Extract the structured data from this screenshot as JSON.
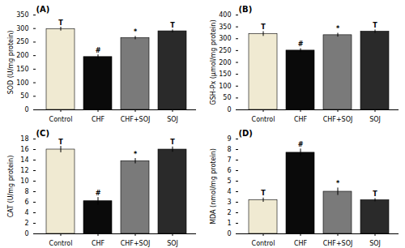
{
  "chart_data": [
    {
      "type": "bar",
      "title": "(A)",
      "ylabel": "SOD (U/mg protein)",
      "categories": [
        "Control",
        "CHF",
        "CHF+SOJ",
        "SOJ"
      ],
      "values": [
        298,
        195,
        265,
        290
      ],
      "errors": [
        7,
        8,
        6,
        5
      ],
      "significance": [
        "T",
        "#",
        "*",
        "T"
      ],
      "colors": [
        "#f0ead2",
        "#0a0a0a",
        "#7a7a7a",
        "#2a2a2a"
      ],
      "ylim": [
        0,
        350
      ],
      "yticks": [
        0,
        50,
        100,
        150,
        200,
        250,
        300,
        350
      ]
    },
    {
      "type": "bar",
      "title": "(B)",
      "ylabel": "GSH-Px (μmol/mg protein)",
      "categories": [
        "Control",
        "CHF",
        "CHF+SOJ",
        "SOJ"
      ],
      "values": [
        320,
        250,
        315,
        330
      ],
      "errors": [
        10,
        8,
        8,
        7
      ],
      "significance": [
        "T",
        "#",
        "*",
        "T"
      ],
      "colors": [
        "#f0ead2",
        "#0a0a0a",
        "#7a7a7a",
        "#2a2a2a"
      ],
      "ylim": [
        0,
        400
      ],
      "yticks": [
        0,
        50,
        100,
        150,
        200,
        250,
        300,
        350,
        400
      ]
    },
    {
      "type": "bar",
      "title": "(C)",
      "ylabel": "CAT (U/mg protein)",
      "categories": [
        "Control",
        "CHF",
        "CHF+SOJ",
        "SOJ"
      ],
      "values": [
        16.0,
        6.2,
        13.8,
        16.0
      ],
      "errors": [
        0.6,
        0.7,
        0.5,
        0.5
      ],
      "significance": [
        "T",
        "#",
        "*",
        "T"
      ],
      "colors": [
        "#f0ead2",
        "#0a0a0a",
        "#7a7a7a",
        "#2a2a2a"
      ],
      "ylim": [
        0,
        18
      ],
      "yticks": [
        0,
        2,
        4,
        6,
        8,
        10,
        12,
        14,
        16,
        18
      ]
    },
    {
      "type": "bar",
      "title": "(D)",
      "ylabel": "MDA (nmol/mg protein)",
      "categories": [
        "Control",
        "CHF",
        "CHF+SOJ",
        "SOJ"
      ],
      "values": [
        3.2,
        7.7,
        4.0,
        3.2
      ],
      "errors": [
        0.2,
        0.35,
        0.35,
        0.15
      ],
      "significance": [
        "T",
        "#",
        "*",
        "T"
      ],
      "colors": [
        "#f0ead2",
        "#0a0a0a",
        "#7a7a7a",
        "#2a2a2a"
      ],
      "ylim": [
        0,
        9
      ],
      "yticks": [
        0,
        1,
        2,
        3,
        4,
        5,
        6,
        7,
        8,
        9
      ]
    }
  ]
}
